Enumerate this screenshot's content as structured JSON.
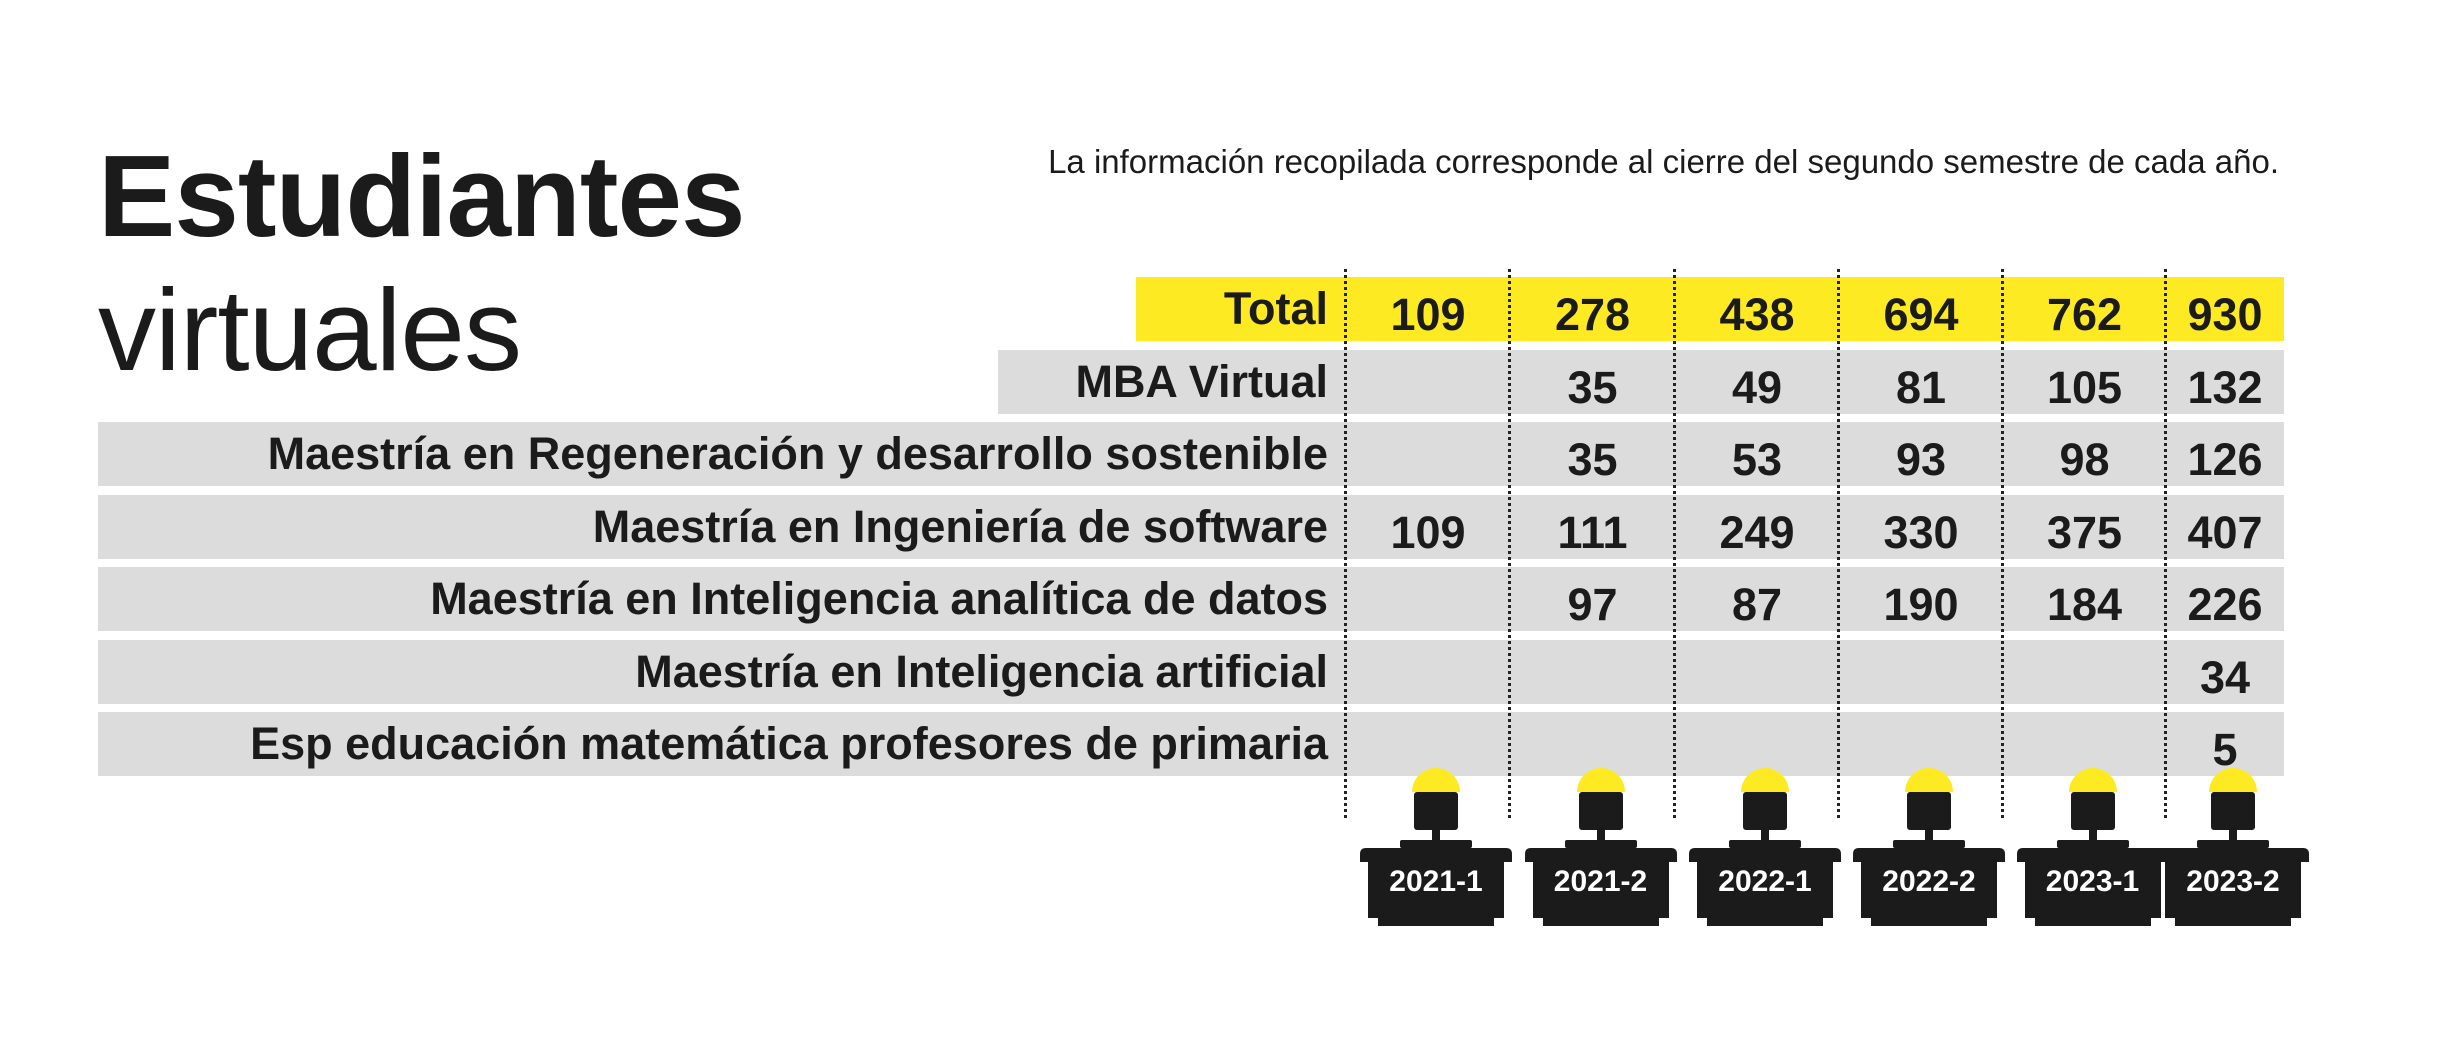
{
  "header": {
    "title_bold": "Estudiantes",
    "title_light": "virtuales",
    "note": "La información recopilada corresponde al cierre del segundo semestre de cada año."
  },
  "colors": {
    "highlight": "#fdea23",
    "row_bg": "#dcdcdc",
    "dark": "#1b1b1b"
  },
  "icons": {
    "period_marker": "desk-computer-lamp-icon"
  },
  "chart_data": {
    "type": "table",
    "columns": [
      "2021-1",
      "2021-2",
      "2022-1",
      "2022-2",
      "2023-1",
      "2023-2"
    ],
    "rows": [
      {
        "label": "Total",
        "values": [
          "109",
          "278",
          "438",
          "694",
          "762",
          "930"
        ],
        "highlight": true
      },
      {
        "label": "MBA Virtual",
        "values": [
          "",
          "35",
          "49",
          "81",
          "105",
          "132"
        ]
      },
      {
        "label": "Maestría en Regeneración y desarrollo sostenible",
        "values": [
          "",
          "35",
          "53",
          "93",
          "98",
          "126"
        ]
      },
      {
        "label": "Maestría en Ingeniería de software",
        "values": [
          "109",
          "111",
          "249",
          "330",
          "375",
          "407"
        ]
      },
      {
        "label": "Maestría en Inteligencia analítica de datos",
        "values": [
          "",
          "97",
          "87",
          "190",
          "184",
          "226"
        ]
      },
      {
        "label": "Maestría en Inteligencia artificial",
        "values": [
          "",
          "",
          "",
          "",
          "",
          "34"
        ]
      },
      {
        "label": "Esp educación matemática  profesores de primaria",
        "values": [
          "",
          "",
          "",
          "",
          "",
          "5"
        ]
      }
    ]
  }
}
